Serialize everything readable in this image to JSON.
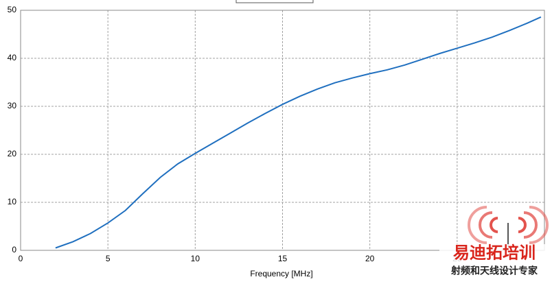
{
  "chart_data": {
    "type": "line",
    "x_label": "Frequency [MHz]",
    "x": [
      2,
      3,
      4,
      5,
      6,
      7,
      8,
      9,
      10,
      11,
      12,
      13,
      14,
      15,
      16,
      17,
      18,
      19,
      20,
      21,
      22,
      23,
      24,
      25,
      26,
      27,
      28,
      29,
      29.8
    ],
    "series": [
      {
        "color": "#1f6fbf",
        "values": [
          0.5,
          1.8,
          3.5,
          5.7,
          8.3,
          11.8,
          15.2,
          18,
          20.2,
          22.3,
          24.4,
          26.5,
          28.5,
          30.4,
          32.1,
          33.6,
          34.9,
          35.9,
          36.8,
          37.6,
          38.6,
          39.8,
          41,
          42.1,
          43.2,
          44.4,
          45.8,
          47.3,
          48.6
        ]
      }
    ],
    "xlim": [
      0,
      30
    ],
    "xticks": [
      0,
      5,
      10,
      15,
      20,
      25
    ],
    "ylim": [
      0,
      50
    ],
    "yticks": [
      0,
      10,
      20,
      30,
      40,
      50
    ],
    "grid": true
  },
  "watermark": {
    "title": "易迪拓培训",
    "subtitle": "射频和天线设计专家"
  }
}
